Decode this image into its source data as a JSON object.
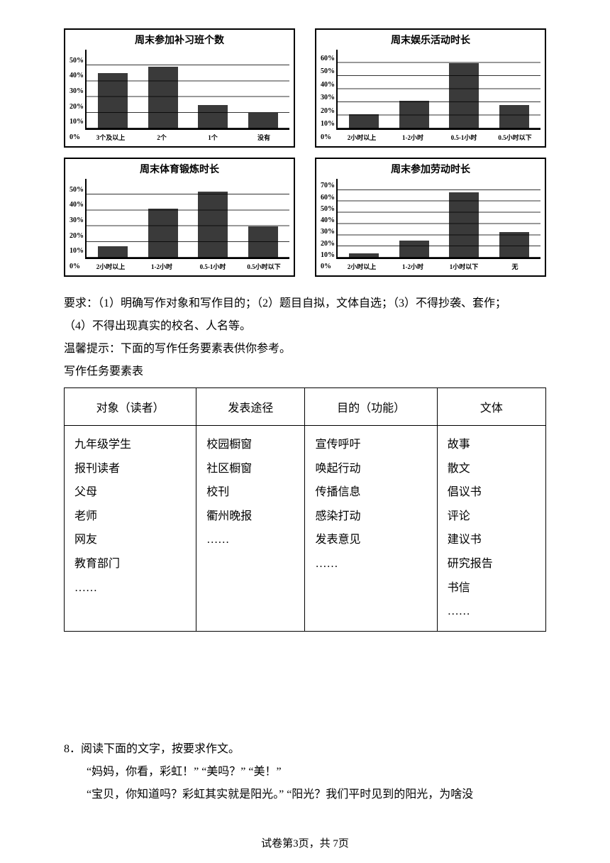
{
  "charts": [
    {
      "title": "周末参加补习班个数",
      "ymax": 50,
      "ystep": 10,
      "categories": [
        "3个及以上",
        "2个",
        "1个",
        "没有"
      ],
      "values": [
        35,
        39,
        15,
        10
      ],
      "bar_color": "#3a3a3a",
      "background_color": "#ffffff",
      "grid_color": "#000000",
      "title_fontsize": 14,
      "label_fontsize": 10,
      "type": "bar"
    },
    {
      "title": "周末娱乐活动时长",
      "ymax": 60,
      "ystep": 10,
      "categories": [
        "2小时以上",
        "1-2小时",
        "0.5-1小时",
        "0.5小时以下"
      ],
      "values": [
        11,
        21,
        50,
        18
      ],
      "bar_color": "#3a3a3a",
      "background_color": "#ffffff",
      "grid_color": "#000000",
      "title_fontsize": 14,
      "label_fontsize": 9,
      "type": "bar"
    },
    {
      "title": "周末体育锻炼时长",
      "ymax": 50,
      "ystep": 10,
      "categories": [
        "2小时以上",
        "1-2小时",
        "0.5-1小时",
        "0.5小时以下"
      ],
      "values": [
        7,
        31,
        42,
        20
      ],
      "bar_color": "#3a3a3a",
      "background_color": "#ffffff",
      "grid_color": "#000000",
      "title_fontsize": 14,
      "label_fontsize": 9,
      "type": "bar"
    },
    {
      "title": "周末参加劳动时长",
      "ymax": 70,
      "ystep": 10,
      "categories": [
        "2小时以上",
        "1-2小时",
        "1小时以下",
        "无"
      ],
      "values": [
        4,
        15,
        58,
        23
      ],
      "bar_color": "#3a3a3a",
      "background_color": "#ffffff",
      "grid_color": "#000000",
      "title_fontsize": 14,
      "label_fontsize": 9,
      "type": "bar"
    }
  ],
  "body": {
    "line1": "要求：（1）明确写作对象和写作目的；（2）题目自拟，文体自选；（3）不得抄袭、套作；",
    "line2": "（4）不得出现真实的校名、人名等。",
    "line3": "温馨提示：下面的写作任务要素表供你参考。",
    "line4": "写作任务要素表"
  },
  "table": {
    "headers": [
      "对象（读者）",
      "发表途径",
      "目的（功能）",
      "文体"
    ],
    "cells": {
      "audience": [
        "九年级学生",
        "报刊读者",
        "父母",
        "老师",
        "网友",
        "教育部门",
        "……"
      ],
      "channel": [
        "校园橱窗",
        "社区橱窗",
        "校刊",
        "衢州晚报",
        "……"
      ],
      "purpose": [
        "宣传呼吁",
        "唤起行动",
        "传播信息",
        "感染打动",
        "发表意见",
        "……"
      ],
      "genre": [
        "故事",
        "散文",
        "倡议书",
        "评论",
        "建议书",
        "研究报告",
        "书信",
        "……"
      ]
    }
  },
  "q8": {
    "num": "8．阅读下面的文字，按要求作文。",
    "p1": "“妈妈，你看，彩虹！” “美吗？” “美！”",
    "p2": "“宝贝，你知道吗？彩虹其实就是阳光。” “阳光？我们平时见到的阳光，为啥没"
  },
  "footer": "试卷第3页，共 7页"
}
